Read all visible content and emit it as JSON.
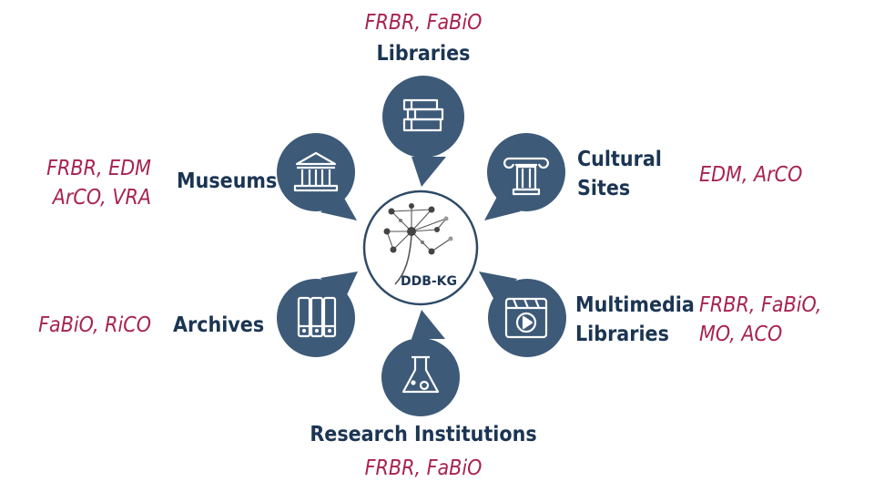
{
  "diagram": {
    "center": {
      "label": "DDB-KG"
    },
    "nodes": {
      "libraries": {
        "title": "Libraries",
        "ontologies": "FRBR, FaBiO",
        "icon": "books-icon"
      },
      "museums": {
        "title": "Museums",
        "ontologies_line1": "FRBR, EDM",
        "ontologies_line2": "ArCO, VRA",
        "icon": "museum-building-icon"
      },
      "cultural_sites": {
        "title_line1": "Cultural",
        "title_line2": "Sites",
        "ontologies": "EDM, ArCO",
        "icon": "column-icon"
      },
      "archives": {
        "title": "Archives",
        "ontologies": "FaBiO, RiCO",
        "icon": "archive-binders-icon"
      },
      "multimedia_libraries": {
        "title_line1": "Multimedia",
        "title_line2": "Libraries",
        "ontologies_line1": "FRBR, FaBiO,",
        "ontologies_line2": "MO, ACO",
        "icon": "video-player-icon"
      },
      "research_institutions": {
        "title": "Research Institutions",
        "ontologies": "FRBR, FaBiO",
        "icon": "flask-icon"
      }
    },
    "colors": {
      "node_fill": "#3d5a78",
      "title_text": "#1b3553",
      "ontology_text": "#a8234f"
    }
  }
}
